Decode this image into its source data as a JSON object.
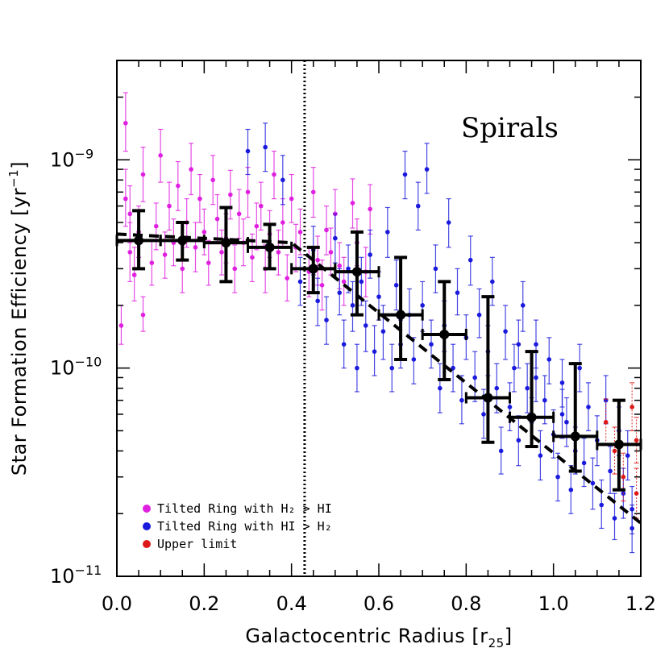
{
  "chart_data": {
    "type": "scatter",
    "title": "Spirals",
    "xlabel": "Galactocentric Radius [r25]",
    "ylabel": "Star Formation Efficiency [yr^-1]",
    "xlim": [
      0.0,
      1.2
    ],
    "ylim": [
      1e-11,
      3e-09
    ],
    "yscale": "log",
    "x_ticks": [
      "0.0",
      "0.2",
      "0.4",
      "0.6",
      "0.8",
      "1.0",
      "1.2"
    ],
    "y_ticks": [
      {
        "value": 1e-11,
        "base": "10",
        "exp": "−11"
      },
      {
        "value": 1e-10,
        "base": "10",
        "exp": "−10"
      },
      {
        "value": 1e-09,
        "base": "10",
        "exp": "−9"
      }
    ],
    "vertical_line_x": 0.43,
    "legend_position": "bottom-left",
    "series": [
      {
        "name": "Tilted Ring with H2 > HI",
        "color": "#e020e0",
        "points": [
          [
            0.01,
            1.6e-10,
            1.3e-10,
            2e-10
          ],
          [
            0.02,
            1.5e-09,
            1.1e-09,
            2.1e-09
          ],
          [
            0.02,
            6.5e-10,
            4.8e-10,
            9e-10
          ],
          [
            0.03,
            5.5e-10,
            4e-10,
            7.5e-10
          ],
          [
            0.03,
            3.6e-10,
            2.6e-10,
            5e-10
          ],
          [
            0.04,
            2.8e-10,
            2.1e-10,
            3.8e-10
          ],
          [
            0.05,
            4.5e-10,
            3.4e-10,
            6e-10
          ],
          [
            0.06,
            1.8e-10,
            1.5e-10,
            2.2e-10
          ],
          [
            0.06,
            8.5e-10,
            6.3e-10,
            1.15e-09
          ],
          [
            0.08,
            3.2e-10,
            2.5e-10,
            4.1e-10
          ],
          [
            0.09,
            4.8e-10,
            3.7e-10,
            6.2e-10
          ],
          [
            0.1,
            1.05e-09,
            7.8e-10,
            1.4e-09
          ],
          [
            0.11,
            3.5e-10,
            2.7e-10,
            4.5e-10
          ],
          [
            0.12,
            6e-10,
            4.6e-10,
            7.8e-10
          ],
          [
            0.13,
            4e-10,
            3.1e-10,
            5.2e-10
          ],
          [
            0.14,
            7.5e-10,
            5.7e-10,
            9.8e-10
          ],
          [
            0.15,
            3e-10,
            2.3e-10,
            3.9e-10
          ],
          [
            0.16,
            5e-10,
            3.8e-10,
            6.5e-10
          ],
          [
            0.17,
            9e-10,
            6.8e-10,
            1.2e-09
          ],
          [
            0.18,
            3.8e-10,
            2.9e-10,
            5e-10
          ],
          [
            0.19,
            6.5e-10,
            5e-10,
            8.5e-10
          ],
          [
            0.2,
            4.5e-10,
            3.5e-10,
            5.8e-10
          ],
          [
            0.21,
            3.2e-10,
            2.5e-10,
            4.1e-10
          ],
          [
            0.22,
            8e-10,
            6.1e-10,
            1.05e-09
          ],
          [
            0.23,
            5.2e-10,
            4e-10,
            6.8e-10
          ],
          [
            0.24,
            3.6e-10,
            2.8e-10,
            4.6e-10
          ],
          [
            0.25,
            4.2e-10,
            3.2e-10,
            5.5e-10
          ],
          [
            0.26,
            6.8e-10,
            5.2e-10,
            8.9e-10
          ],
          [
            0.27,
            3e-10,
            2.3e-10,
            3.9e-10
          ],
          [
            0.28,
            5.5e-10,
            4.2e-10,
            7.2e-10
          ],
          [
            0.29,
            4e-10,
            3.1e-10,
            5.2e-10
          ],
          [
            0.3,
            7e-10,
            5.3e-10,
            9.2e-10
          ],
          [
            0.31,
            3.4e-10,
            2.6e-10,
            4.4e-10
          ],
          [
            0.32,
            4.8e-10,
            3.7e-10,
            6.2e-10
          ],
          [
            0.33,
            6e-10,
            4.6e-10,
            7.8e-10
          ],
          [
            0.34,
            3e-10,
            2.3e-10,
            3.9e-10
          ],
          [
            0.35,
            4.4e-10,
            3.4e-10,
            5.7e-10
          ],
          [
            0.36,
            8.5e-10,
            6.5e-10,
            1.1e-09
          ],
          [
            0.37,
            3.6e-10,
            2.8e-10,
            4.6e-10
          ],
          [
            0.38,
            5e-10,
            3.8e-10,
            6.5e-10
          ],
          [
            0.39,
            2.7e-10,
            2.1e-10,
            3.5e-10
          ],
          [
            0.4,
            6.5e-10,
            5e-10,
            8.5e-10
          ],
          [
            0.41,
            3.8e-10,
            2.9e-10,
            4.9e-10
          ],
          [
            0.42,
            4.5e-10,
            3.5e-10,
            5.8e-10
          ],
          [
            0.44,
            2.9e-10,
            2.2e-10,
            3.8e-10
          ],
          [
            0.45,
            7e-10,
            5.3e-10,
            9.2e-10
          ],
          [
            0.46,
            3.3e-10,
            2.5e-10,
            4.3e-10
          ],
          [
            0.47,
            2.5e-10,
            1.9e-10,
            3.3e-10
          ],
          [
            0.48,
            4.6e-10,
            3.5e-10,
            6e-10
          ],
          [
            0.49,
            3.6e-10,
            2.8e-10,
            4.7e-10
          ],
          [
            0.5,
            5.5e-10,
            4.2e-10,
            7.2e-10
          ],
          [
            0.51,
            3.1e-10,
            2.4e-10,
            4e-10
          ],
          [
            0.52,
            2.6e-10,
            2e-10,
            3.4e-10
          ],
          [
            0.54,
            6.2e-10,
            4.7e-10,
            8.1e-10
          ],
          [
            0.55,
            4e-10,
            3.1e-10,
            5.2e-10
          ],
          [
            0.57,
            2.9e-10,
            2.2e-10,
            3.8e-10
          ],
          [
            0.58,
            5.8e-10,
            4.4e-10,
            7.6e-10
          ]
        ]
      },
      {
        "name": "Tilted Ring with HI > H2",
        "color": "#1a1add",
        "points": [
          [
            0.3,
            1.1e-09,
            8.5e-10,
            1.4e-09
          ],
          [
            0.34,
            1.15e-09,
            8.8e-10,
            1.5e-09
          ],
          [
            0.38,
            8e-10,
            6.1e-10,
            1.05e-09
          ],
          [
            0.42,
            2.6e-10,
            2e-10,
            3.4e-10
          ],
          [
            0.45,
            3.7e-10,
            2.8e-10,
            4.8e-10
          ],
          [
            0.46,
            2.1e-10,
            1.6e-10,
            2.7e-10
          ],
          [
            0.48,
            1.7e-10,
            1.3e-10,
            2.2e-10
          ],
          [
            0.5,
            4.2e-10,
            3.2e-10,
            5.5e-10
          ],
          [
            0.51,
            2.3e-10,
            1.8e-10,
            3e-10
          ],
          [
            0.52,
            1.3e-10,
            1e-10,
            1.7e-10
          ],
          [
            0.53,
            3e-10,
            2.3e-10,
            3.9e-10
          ],
          [
            0.54,
            2e-10,
            1.5e-10,
            2.6e-10
          ],
          [
            0.55,
            1e-10,
            7.7e-11,
            1.3e-10
          ],
          [
            0.56,
            2.6e-10,
            2e-10,
            3.4e-10
          ],
          [
            0.57,
            1.6e-10,
            1.2e-10,
            2.1e-10
          ],
          [
            0.58,
            3.5e-10,
            2.7e-10,
            4.6e-10
          ],
          [
            0.59,
            1.2e-10,
            9.2e-11,
            1.6e-10
          ],
          [
            0.6,
            2.2e-10,
            1.7e-10,
            2.9e-10
          ],
          [
            0.61,
            1.5e-10,
            1.1e-10,
            2e-10
          ],
          [
            0.62,
            4.5e-10,
            3.4e-10,
            5.9e-10
          ],
          [
            0.63,
            1e-10,
            7.7e-11,
            1.3e-10
          ],
          [
            0.64,
            2.5e-10,
            1.9e-10,
            3.3e-10
          ],
          [
            0.65,
            1.3e-10,
            1e-10,
            1.7e-10
          ],
          [
            0.66,
            8.5e-10,
            6.5e-10,
            1.1e-09
          ],
          [
            0.67,
            1.8e-10,
            1.4e-10,
            2.4e-10
          ],
          [
            0.68,
            1.1e-10,
            8.4e-11,
            1.4e-10
          ],
          [
            0.69,
            6e-10,
            4.6e-10,
            7.8e-10
          ],
          [
            0.7,
            2e-10,
            1.5e-10,
            2.6e-10
          ],
          [
            0.71,
            9e-10,
            6.9e-10,
            1.2e-09
          ],
          [
            0.72,
            1.3e-10,
            1e-10,
            1.7e-10
          ],
          [
            0.73,
            3e-10,
            2.3e-10,
            3.9e-10
          ],
          [
            0.74,
            8e-11,
            6.1e-11,
            1.05e-10
          ],
          [
            0.75,
            1.6e-10,
            1.2e-10,
            2.1e-10
          ],
          [
            0.76,
            5e-10,
            3.8e-10,
            6.5e-10
          ],
          [
            0.77,
            1e-10,
            7.7e-11,
            1.3e-10
          ],
          [
            0.78,
            2.3e-10,
            1.8e-10,
            3e-10
          ],
          [
            0.79,
            7e-11,
            5.4e-11,
            9.2e-11
          ],
          [
            0.8,
            1.4e-10,
            1.1e-10,
            1.8e-10
          ],
          [
            0.81,
            3.3e-10,
            2.5e-10,
            4.3e-10
          ],
          [
            0.82,
            9e-11,
            6.9e-11,
            1.2e-10
          ],
          [
            0.83,
            1.8e-10,
            1.4e-10,
            2.4e-10
          ],
          [
            0.84,
            6e-11,
            4.6e-11,
            7.9e-11
          ],
          [
            0.85,
            1.2e-10,
            9.2e-11,
            1.6e-10
          ],
          [
            0.86,
            2.6e-10,
            2e-10,
            3.4e-10
          ],
          [
            0.87,
            8e-11,
            6.1e-11,
            1.05e-10
          ],
          [
            0.88,
            4e-11,
            3.1e-11,
            5.2e-11
          ],
          [
            0.89,
            1.5e-10,
            1.1e-10,
            2e-10
          ],
          [
            0.9,
            6.5e-11,
            5e-11,
            8.5e-11
          ],
          [
            0.91,
            1e-10,
            7.7e-11,
            1.3e-10
          ],
          [
            0.92,
            4.5e-11,
            3.4e-11,
            5.9e-11
          ],
          [
            0.93,
            2e-10,
            1.5e-10,
            2.6e-10
          ],
          [
            0.94,
            8e-11,
            6.1e-11,
            1.05e-10
          ],
          [
            0.95,
            5.5e-11,
            4.2e-11,
            7.2e-11
          ],
          [
            0.96,
            1.3e-10,
            1e-10,
            1.7e-10
          ],
          [
            0.97,
            3.8e-11,
            2.9e-11,
            5e-11
          ],
          [
            0.98,
            7e-11,
            5.4e-11,
            9.2e-11
          ],
          [
            0.99,
            1.1e-10,
            8.4e-11,
            1.4e-10
          ],
          [
            1.0,
            4.8e-11,
            3.7e-11,
            6.3e-11
          ],
          [
            1.01,
            3e-11,
            2.3e-11,
            3.9e-11
          ],
          [
            1.02,
            8.5e-11,
            6.5e-11,
            1.1e-10
          ],
          [
            1.03,
            5.5e-11,
            4.2e-11,
            7.2e-11
          ],
          [
            1.04,
            2.6e-11,
            2e-11,
            3.4e-11
          ],
          [
            1.05,
            4e-11,
            3.1e-11,
            5.2e-11
          ],
          [
            1.06,
            1e-10,
            7.7e-11,
            1.3e-10
          ],
          [
            1.07,
            3.5e-11,
            2.7e-11,
            4.6e-11
          ],
          [
            1.08,
            6.5e-11,
            5e-11,
            8.5e-11
          ],
          [
            1.09,
            2.8e-11,
            2.1e-11,
            3.7e-11
          ],
          [
            1.1,
            4.5e-11,
            3.4e-11,
            5.9e-11
          ],
          [
            1.11,
            2.2e-11,
            1.7e-11,
            2.9e-11
          ],
          [
            1.12,
            7e-11,
            5.4e-11,
            9.2e-11
          ],
          [
            1.13,
            3.2e-11,
            2.5e-11,
            4.2e-11
          ],
          [
            1.14,
            1.9e-11,
            1.5e-11,
            2.5e-11
          ],
          [
            1.15,
            5e-11,
            3.8e-11,
            6.5e-11
          ],
          [
            1.16,
            2.5e-11,
            1.9e-11,
            3.3e-11
          ],
          [
            1.17,
            3.8e-11,
            2.9e-11,
            5e-11
          ],
          [
            1.18,
            1.7e-11,
            1.3e-11,
            2.2e-11
          ],
          [
            1.18,
            2.1e-11,
            1.6e-11,
            2.7e-11
          ],
          [
            0.92,
            1.3e-10,
            1e-10,
            1.7e-10
          ],
          [
            0.96,
            9e-11,
            6.9e-11,
            1.2e-10
          ],
          [
            1.02,
            6e-11,
            4.6e-11,
            7.9e-11
          ]
        ]
      },
      {
        "name": "Upper limit",
        "color": "#dd1a1a",
        "points": [
          [
            1.12,
            5.5e-11,
            4.3e-11,
            7.1e-11
          ],
          [
            1.14,
            4e-11,
            3.1e-11,
            5.2e-11
          ],
          [
            1.16,
            3e-11,
            2.3e-11,
            3.9e-11
          ],
          [
            1.18,
            6.5e-11,
            5e-11,
            8.5e-11
          ],
          [
            1.19,
            2.5e-11,
            1.9e-11,
            3.3e-11
          ],
          [
            1.19,
            4.5e-11,
            3.5e-11,
            5.8e-11
          ]
        ]
      }
    ],
    "binned_medians": [
      {
        "x": 0.05,
        "y": 4.1e-10,
        "xerr": 0.05,
        "ylo": 3e-10,
        "yhi": 5.7e-10
      },
      {
        "x": 0.15,
        "y": 4.1e-10,
        "xerr": 0.05,
        "ylo": 3.3e-10,
        "yhi": 5e-10
      },
      {
        "x": 0.25,
        "y": 4e-10,
        "xerr": 0.05,
        "ylo": 2.6e-10,
        "yhi": 5.9e-10
      },
      {
        "x": 0.35,
        "y": 3.8e-10,
        "xerr": 0.05,
        "ylo": 3e-10,
        "yhi": 4.9e-10
      },
      {
        "x": 0.45,
        "y": 3e-10,
        "xerr": 0.05,
        "ylo": 2.3e-10,
        "yhi": 3.8e-10
      },
      {
        "x": 0.55,
        "y": 2.9e-10,
        "xerr": 0.05,
        "ylo": 1.8e-10,
        "yhi": 4.5e-10
      },
      {
        "x": 0.65,
        "y": 1.8e-10,
        "xerr": 0.05,
        "ylo": 1.1e-10,
        "yhi": 3.4e-10
      },
      {
        "x": 0.75,
        "y": 1.45e-10,
        "xerr": 0.05,
        "ylo": 8.8e-11,
        "yhi": 2.6e-10
      },
      {
        "x": 0.85,
        "y": 7.2e-11,
        "xerr": 0.05,
        "ylo": 4.4e-11,
        "yhi": 2.2e-10
      },
      {
        "x": 0.95,
        "y": 5.8e-11,
        "xerr": 0.05,
        "ylo": 4.2e-11,
        "yhi": 1.2e-10
      },
      {
        "x": 1.05,
        "y": 4.7e-11,
        "xerr": 0.05,
        "ylo": 3.2e-11,
        "yhi": 1.05e-10
      },
      {
        "x": 1.15,
        "y": 4.3e-11,
        "xerr": 0.05,
        "ylo": 2.6e-11,
        "yhi": 7e-11
      }
    ],
    "fit_line": {
      "style": "dashed",
      "points": [
        [
          0.0,
          4.4e-10
        ],
        [
          0.4,
          4e-10
        ],
        [
          1.2,
          1.8e-11
        ]
      ]
    }
  },
  "legend": [
    {
      "label": "Tilted Ring with H₂ > HI",
      "color": "#e020e0"
    },
    {
      "label": "Tilted Ring with HI > H₂",
      "color": "#1a1add"
    },
    {
      "label": "Upper limit",
      "color": "#dd1a1a"
    }
  ],
  "labels": {
    "panel": "Spirals",
    "xlabel_main": "Galactocentric Radius [r",
    "xlabel_sub": "25",
    "xlabel_close": "]",
    "ylabel_main": "Star Formation Efficiency [yr",
    "ylabel_sup": "−1",
    "ylabel_close": "]"
  }
}
